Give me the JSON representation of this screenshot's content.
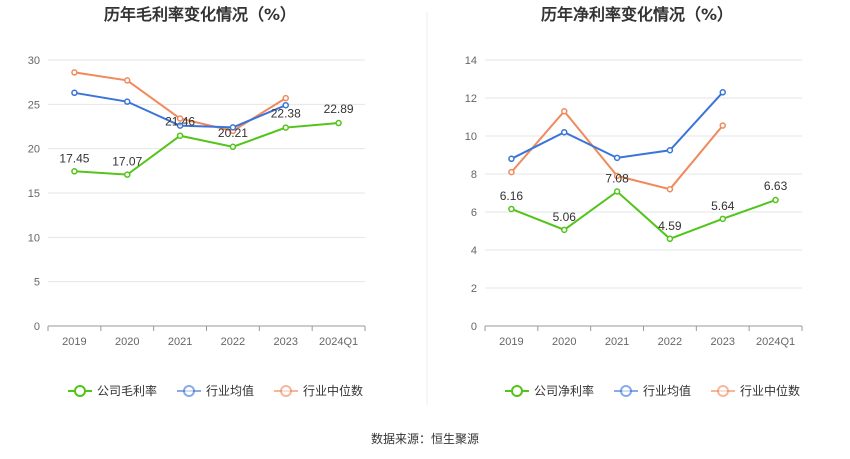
{
  "source": "数据来源：恒生聚源",
  "chart_data": [
    {
      "type": "line",
      "title": "历年毛利率变化情况（%）",
      "categories": [
        "2019",
        "2020",
        "2021",
        "2022",
        "2023",
        "2024Q1"
      ],
      "ylim": [
        0,
        30
      ],
      "yticks": [
        0,
        5,
        10,
        15,
        20,
        25,
        30
      ],
      "grid": true,
      "legend_position": "bottom",
      "series": [
        {
          "name": "公司毛利率",
          "color": "#52c41a",
          "values": [
            17.45,
            17.07,
            21.46,
            20.21,
            22.38,
            22.89
          ],
          "labels": [
            "17.45",
            "17.07",
            "21.46",
            "20.21",
            "22.38",
            "22.89"
          ]
        },
        {
          "name": "行业均值",
          "color": "#3a74d9",
          "values": [
            26.3,
            25.3,
            22.6,
            22.4,
            24.9,
            null
          ]
        },
        {
          "name": "行业中位数",
          "color": "#f08a5d",
          "values": [
            28.6,
            27.7,
            23.4,
            22.0,
            25.7,
            null
          ]
        }
      ]
    },
    {
      "type": "line",
      "title": "历年净利率变化情况（%）",
      "categories": [
        "2019",
        "2020",
        "2021",
        "2022",
        "2023",
        "2024Q1"
      ],
      "ylim": [
        0,
        14
      ],
      "yticks": [
        0,
        2,
        4,
        6,
        8,
        10,
        12,
        14
      ],
      "grid": true,
      "legend_position": "bottom",
      "series": [
        {
          "name": "公司净利率",
          "color": "#52c41a",
          "values": [
            6.16,
            5.06,
            7.08,
            4.59,
            5.64,
            6.63
          ],
          "labels": [
            "6.16",
            "5.06",
            "7.08",
            "4.59",
            "5.64",
            "6.63"
          ]
        },
        {
          "name": "行业均值",
          "color": "#3a74d9",
          "values": [
            8.8,
            10.2,
            8.85,
            9.25,
            12.3,
            null
          ]
        },
        {
          "name": "行业中位数",
          "color": "#f08a5d",
          "values": [
            8.1,
            11.3,
            7.9,
            7.2,
            10.55,
            null
          ]
        }
      ]
    }
  ]
}
